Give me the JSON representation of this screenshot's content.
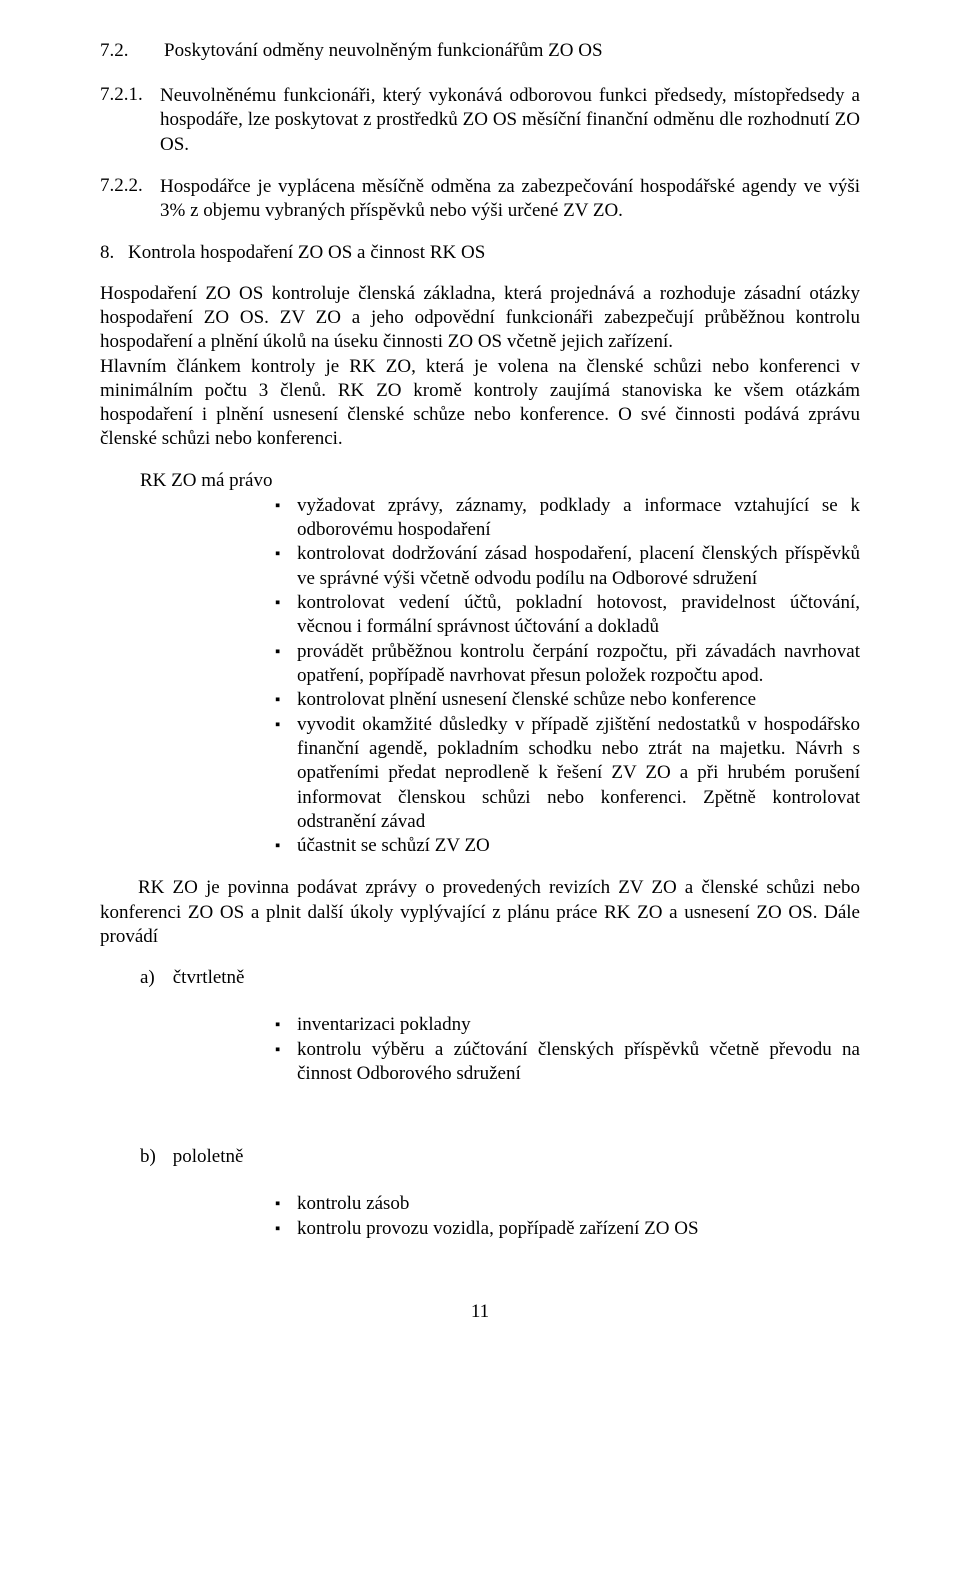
{
  "heading72": {
    "num": "7.2.",
    "title": "Poskytování odměny neuvolněným funkcionářům ZO OS"
  },
  "item721": {
    "num": "7.2.1.",
    "text": "Neuvolněnému funkcionáři, který vykonává odborovou funkci předsedy, místopředsedy a hospodáře, lze poskytovat z prostředků ZO OS měsíční finanční odměnu dle rozhodnutí ZO OS."
  },
  "item722": {
    "num": "7.2.2.",
    "text": "Hospodářce je vyplácena měsíčně odměna za zabezpečování hospodářské agendy ve výši 3% z objemu vybraných příspěvků nebo výši určené ZV ZO."
  },
  "heading8": {
    "num": "8.",
    "title": "Kontrola hospodaření ZO OS a činnost RK OS"
  },
  "para1": "Hospodaření ZO OS kontroluje členská základna, která projednává a rozhoduje zásadní otázky hospodaření ZO OS. ZV ZO a jeho odpovědní funkcionáři zabezpečují průběžnou kontrolu hospodaření a plnění úkolů na úseku činnosti ZO OS včetně jejich zařízení.",
  "para2": "Hlavním článkem kontroly je RK ZO, která je volena na členské schůzi nebo konferenci v minimálním počtu 3 členů. RK ZO kromě kontroly zaujímá stanoviska ke všem otázkám hospodaření i plnění usnesení členské schůze nebo konference. O své činnosti podává zprávu členské schůzi nebo konferenci.",
  "rk_intro": "RK ZO má právo",
  "rk_bullets": [
    "vyžadovat zprávy, záznamy, podklady a informace vztahující se k odborovému hospodaření",
    "kontrolovat dodržování zásad hospodaření, placení členských příspěvků ve správné výši včetně odvodu podílu na Odborové sdružení",
    "kontrolovat vedení účtů, pokladní hotovost, pravidelnost účtování, věcnou i formální správnost účtování a dokladů",
    "provádět průběžnou kontrolu čerpání rozpočtu, při závadách navrhovat opatření, popřípadě navrhovat přesun položek rozpočtu apod.",
    "kontrolovat plnění usnesení členské schůze nebo konference",
    "vyvodit okamžité důsledky v případě zjištění nedostatků v hospodářsko finanční agendě, pokladním schodku nebo ztrát na majetku. Návrh s opatřeními předat neprodleně k řešení ZV ZO a při hrubém porušení informovat členskou schůzi nebo konferenci. Zpětně kontrolovat odstranění závad",
    "účastnit se schůzí ZV ZO"
  ],
  "para3": "RK ZO je povinna  podávat zprávy o provedených revizích ZV ZO a členské schůzi nebo konferenci ZO OS a plnit další úkoly vyplývající z plánu práce RK ZO a usnesení ZO OS. Dále provádí",
  "letter_a": {
    "letter": "a)",
    "label": "čtvrtletně"
  },
  "a_bullets": [
    "inventarizaci pokladny",
    "kontrolu výběru a zúčtování členských příspěvků včetně převodu na činnost Odborového sdružení"
  ],
  "letter_b": {
    "letter": "b)",
    "label": "pololetně"
  },
  "b_bullets": [
    "kontrolu zásob",
    "kontrolu provozu vozidla, popřípadě zařízení ZO OS"
  ],
  "page_number": "11",
  "bullet_marker": "▪"
}
